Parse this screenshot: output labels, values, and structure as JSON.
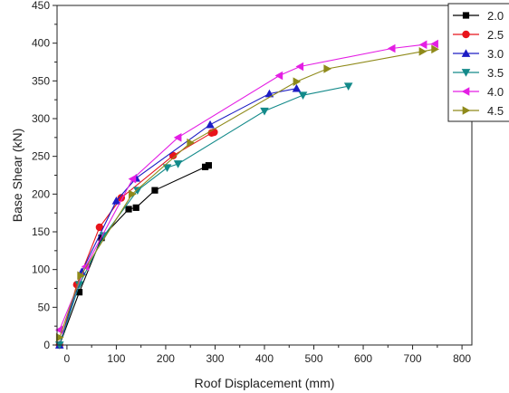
{
  "chart_data": {
    "type": "line",
    "title": "",
    "xlabel": "Roof Displacement (mm)",
    "ylabel": "Base Shear (kN)",
    "xlim": [
      -20,
      820
    ],
    "ylim": [
      0,
      450
    ],
    "xticks": [
      0,
      100,
      200,
      300,
      400,
      500,
      600,
      700,
      800
    ],
    "yticks": [
      0,
      50,
      100,
      150,
      200,
      250,
      300,
      350,
      400,
      450
    ],
    "x_tick_labels": [
      "0",
      "100",
      "200",
      "300",
      "400",
      "500",
      "600",
      "700",
      "800"
    ],
    "y_tick_labels": [
      "0",
      "50",
      "100",
      "150",
      "200",
      "250",
      "300",
      "350",
      "400",
      "450"
    ],
    "grid": false,
    "legend_position": "top-right",
    "series": [
      {
        "name": "2.0",
        "color": "#000000",
        "marker": "square",
        "x": [
          -15,
          25,
          70,
          125,
          140,
          178,
          280,
          287
        ],
        "y": [
          0,
          70,
          142,
          180,
          182,
          205,
          236,
          238
        ]
      },
      {
        "name": "2.5",
        "color": "#e8141b",
        "marker": "circle",
        "x": [
          -15,
          20,
          66,
          110,
          215,
          293,
          298
        ],
        "y": [
          0,
          80,
          156,
          195,
          251,
          281,
          282
        ]
      },
      {
        "name": "3.0",
        "color": "#1c1cc4",
        "marker": "triangle-up",
        "x": [
          -15,
          30,
          100,
          140,
          290,
          410,
          465
        ],
        "y": [
          0,
          97,
          191,
          221,
          292,
          333,
          340
        ]
      },
      {
        "name": "3.5",
        "color": "#138a8a",
        "marker": "triangle-down",
        "x": [
          -15,
          25,
          75,
          143,
          203,
          225,
          400,
          478,
          570
        ],
        "y": [
          0,
          80,
          145,
          205,
          235,
          240,
          310,
          331,
          343
        ]
      },
      {
        "name": "4.0",
        "color": "#e41ee4",
        "marker": "triangle-left",
        "x": [
          -15,
          38,
          133,
          225,
          430,
          472,
          658,
          722,
          745
        ],
        "y": [
          20,
          104,
          220,
          275,
          357,
          369,
          393,
          398,
          399
        ]
      },
      {
        "name": "4.5",
        "color": "#8f8a1a",
        "marker": "triangle-right",
        "x": [
          -15,
          28,
          132,
          250,
          465,
          527,
          720,
          745
        ],
        "y": [
          10,
          92,
          200,
          268,
          349,
          366,
          389,
          392
        ]
      }
    ]
  }
}
